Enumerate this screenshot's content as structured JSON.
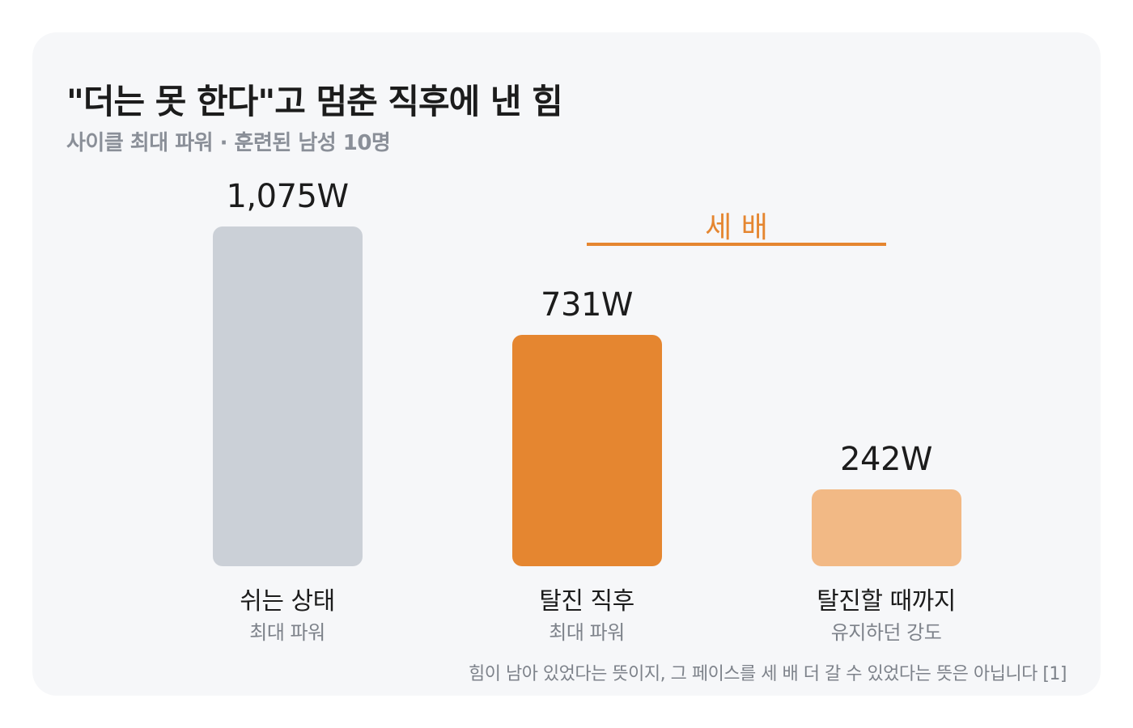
{
  "header": {
    "title": "\"더는 못 한다\"고 멈춘 직후에 낸 힘",
    "subtitle": "사이클 최대 파워 · 훈련된 남성 10명"
  },
  "annotation": {
    "text": "세 배"
  },
  "footnote": "힘이 남아 있었다는 뜻이지, 그 페이스를 세 배 더 갈 수 있었다는 뜻은 아닙니다 [1]",
  "colors": {
    "rest": "#cbd0d7",
    "exhaustion": "#e58630",
    "sustained": "#f2b985",
    "accent": "#e58630",
    "background": "#f6f7f9"
  },
  "chart_data": {
    "type": "bar",
    "title": "\"더는 못 한다\"고 멈춘 직후에 낸 힘",
    "subtitle": "사이클 최대 파워 · 훈련된 남성 10명",
    "categories": [
      "쉬는 상태",
      "탈진 직후",
      "탈진할 때까지"
    ],
    "category_sublabels": [
      "최대 파워",
      "최대 파워",
      "유지하던 강도"
    ],
    "values": [
      1075,
      731,
      242
    ],
    "value_labels": [
      "1,075W",
      "731W",
      "242W"
    ],
    "unit": "W",
    "ylim": [
      0,
      1075
    ],
    "grid": false,
    "annotations": [
      {
        "text": "세 배",
        "between": [
          "탈진 직후",
          "탈진할 때까지"
        ]
      }
    ]
  }
}
